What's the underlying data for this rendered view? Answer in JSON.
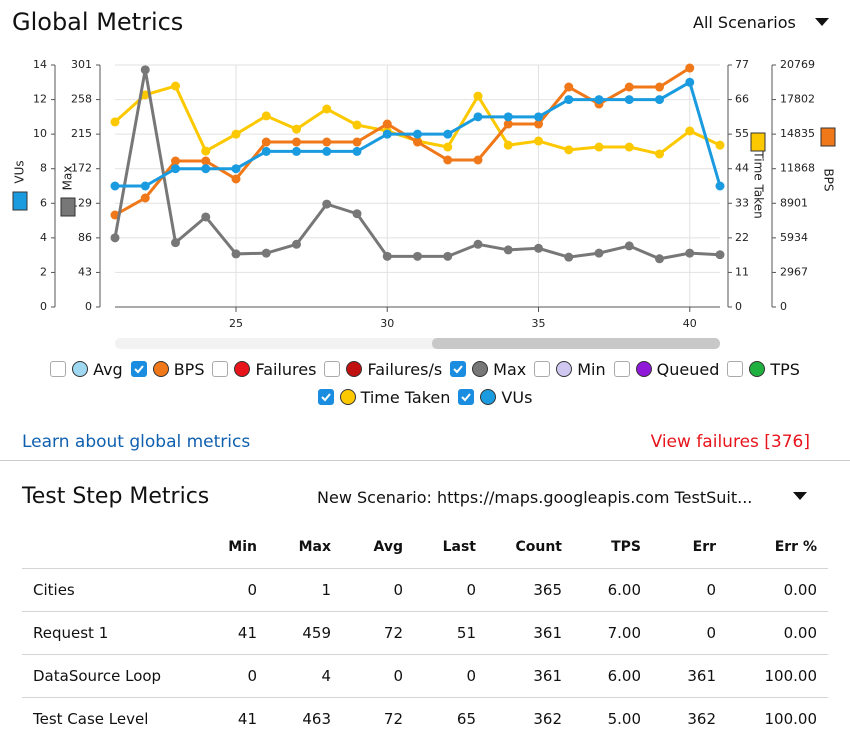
{
  "header": {
    "title": "Global Metrics",
    "scenario": "All Scenarios"
  },
  "chart_data": {
    "type": "line",
    "x": [
      21,
      22,
      23,
      24,
      25,
      26,
      27,
      28,
      29,
      30,
      31,
      32,
      33,
      34,
      35,
      36,
      37,
      38,
      39,
      40,
      41
    ],
    "xlim": [
      21,
      41
    ],
    "xticks": [
      25,
      30,
      35,
      40
    ],
    "grid": true,
    "axes": [
      {
        "label": "VUs",
        "lim": [
          0,
          14
        ],
        "ticks": [
          0,
          2,
          4,
          6,
          8,
          10,
          12,
          14
        ]
      },
      {
        "label": "Max",
        "lim": [
          0,
          301
        ],
        "ticks": [
          0,
          43,
          86,
          129,
          172,
          215,
          258,
          301
        ]
      },
      {
        "label": "Time Taken",
        "lim": [
          0,
          77
        ],
        "ticks": [
          0,
          11,
          22,
          33,
          44,
          55,
          66,
          77
        ]
      },
      {
        "label": "BPS",
        "lim": [
          0,
          20769
        ],
        "ticks": [
          0,
          2967,
          5934,
          8901,
          11868,
          14835,
          17802,
          20769
        ]
      }
    ],
    "series": [
      {
        "name": "Time Taken",
        "color": "#fcc800",
        "axis": 2,
        "values": [
          58.9,
          67.5,
          70.3,
          49.6,
          55,
          60.8,
          56.6,
          63,
          57.9,
          56,
          52.8,
          50.9,
          67.1,
          51.5,
          52.8,
          50,
          50.9,
          50.9,
          48.7,
          56,
          51.5
        ]
      },
      {
        "name": "BPS",
        "color": "#f07818",
        "axis": 3,
        "values": [
          7896,
          9355,
          12530,
          12530,
          10985,
          14160,
          14160,
          14160,
          14160,
          15705,
          14160,
          12616,
          12616,
          15705,
          15705,
          18880,
          17421,
          18880,
          18880,
          20511,
          null
        ]
      },
      {
        "name": "Max",
        "color": "#777777",
        "axis": 1,
        "values": [
          86,
          295,
          80,
          112,
          66,
          67,
          78,
          128,
          116,
          63,
          63,
          63,
          78,
          71,
          73,
          62,
          67,
          76,
          60,
          67,
          65
        ]
      },
      {
        "name": "VUs",
        "color": "#1a9be0",
        "axis": 0,
        "values": [
          7,
          7,
          8,
          8,
          8,
          9,
          9,
          9,
          9,
          10,
          10,
          10,
          11,
          11,
          11,
          12,
          12,
          12,
          12,
          13,
          7
        ]
      }
    ],
    "legend": [
      {
        "label": "Avg",
        "color": "#9fd8f0",
        "checked": false
      },
      {
        "label": "BPS",
        "color": "#f07818",
        "checked": true
      },
      {
        "label": "Failures",
        "color": "#e8141c",
        "checked": false
      },
      {
        "label": "Failures/s",
        "color": "#c01010",
        "checked": false
      },
      {
        "label": "Max",
        "color": "#777777",
        "checked": true
      },
      {
        "label": "Min",
        "color": "#d0c8f0",
        "checked": false
      },
      {
        "label": "Queued",
        "color": "#9018d8",
        "checked": false
      },
      {
        "label": "TPS",
        "color": "#20b040",
        "checked": false
      },
      {
        "label": "Time Taken",
        "color": "#fcc800",
        "checked": true
      },
      {
        "label": "VUs",
        "color": "#1a9be0",
        "checked": true
      }
    ]
  },
  "links": {
    "learn": "Learn about global metrics",
    "failures": "View failures [376]"
  },
  "steps": {
    "title": "Test Step Metrics",
    "scenario": "New Scenario: https://maps.googleapis.com TestSuit...",
    "table": {
      "columns": [
        "Min",
        "Max",
        "Avg",
        "Last",
        "Count",
        "TPS",
        "Err",
        "Err %"
      ],
      "rows": [
        [
          "Cities",
          "0",
          "1",
          "0",
          "0",
          "365",
          "6.00",
          "0",
          "0.00"
        ],
        [
          "Request 1",
          "41",
          "459",
          "72",
          "51",
          "361",
          "7.00",
          "0",
          "0.00"
        ],
        [
          "DataSource Loop",
          "0",
          "4",
          "0",
          "0",
          "361",
          "6.00",
          "361",
          "100.00"
        ],
        [
          "Test Case Level",
          "41",
          "463",
          "72",
          "65",
          "362",
          "5.00",
          "362",
          "100.00"
        ]
      ]
    }
  }
}
